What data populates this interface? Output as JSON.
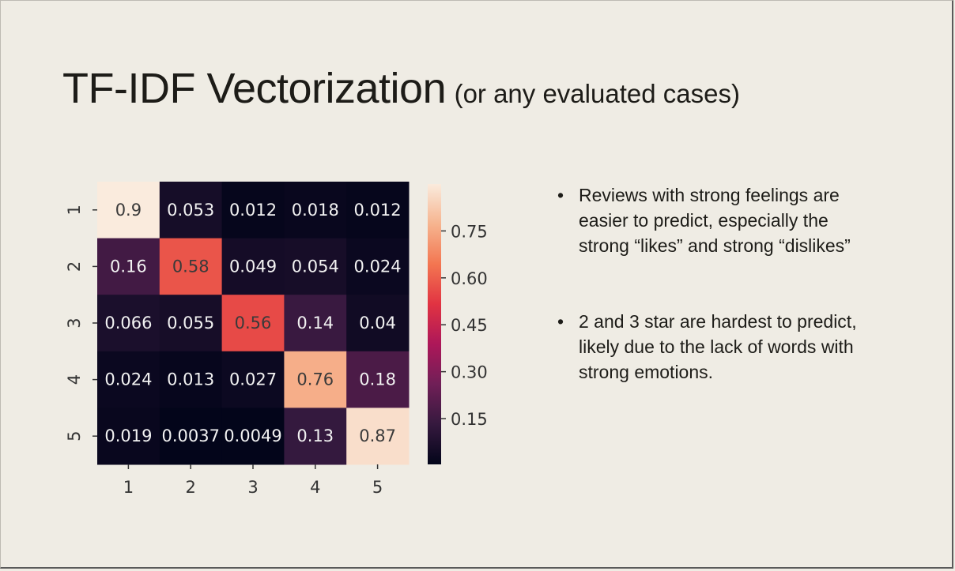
{
  "slide": {
    "title": "TF-IDF Vectorization",
    "subtitle": "(or any evaluated cases)",
    "bullets": [
      "Reviews with strong feelings are easier to predict, especially the strong “likes” and strong “dislikes”",
      "2 and 3 star are hardest to predict, likely due to the lack of words with strong emotions."
    ],
    "bullet_symbol": "•"
  },
  "chart_data": {
    "type": "heatmap",
    "row_labels": [
      "1",
      "2",
      "3",
      "4",
      "5"
    ],
    "col_labels": [
      "1",
      "2",
      "3",
      "4",
      "5"
    ],
    "values": [
      [
        0.9,
        0.053,
        0.012,
        0.018,
        0.012
      ],
      [
        0.16,
        0.58,
        0.049,
        0.054,
        0.024
      ],
      [
        0.066,
        0.055,
        0.56,
        0.14,
        0.04
      ],
      [
        0.024,
        0.013,
        0.027,
        0.76,
        0.18
      ],
      [
        0.019,
        0.0037,
        0.0049,
        0.13,
        0.87
      ]
    ],
    "cell_labels": [
      [
        "0.9",
        "0.053",
        "0.012",
        "0.018",
        "0.012"
      ],
      [
        "0.16",
        "0.58",
        "0.049",
        "0.054",
        "0.024"
      ],
      [
        "0.066",
        "0.055",
        "0.56",
        "0.14",
        "0.04"
      ],
      [
        "0.024",
        "0.013",
        "0.027",
        "0.76",
        "0.18"
      ],
      [
        "0.019",
        "0.0037",
        "0.0049",
        "0.13",
        "0.87"
      ]
    ],
    "colorbar": {
      "min": 0.0037,
      "max": 0.9,
      "ticks": [
        0.15,
        0.3,
        0.45,
        0.6,
        0.75
      ],
      "tick_labels": [
        "0.15",
        "0.30",
        "0.45",
        "0.60",
        "0.75"
      ],
      "colormap": "rocket",
      "colors": [
        "#03051a",
        "#35193e",
        "#701f57",
        "#ad1759",
        "#e13342",
        "#f37651",
        "#f6b48f",
        "#faebdd"
      ]
    },
    "title": "",
    "xlabel": "",
    "ylabel": ""
  }
}
